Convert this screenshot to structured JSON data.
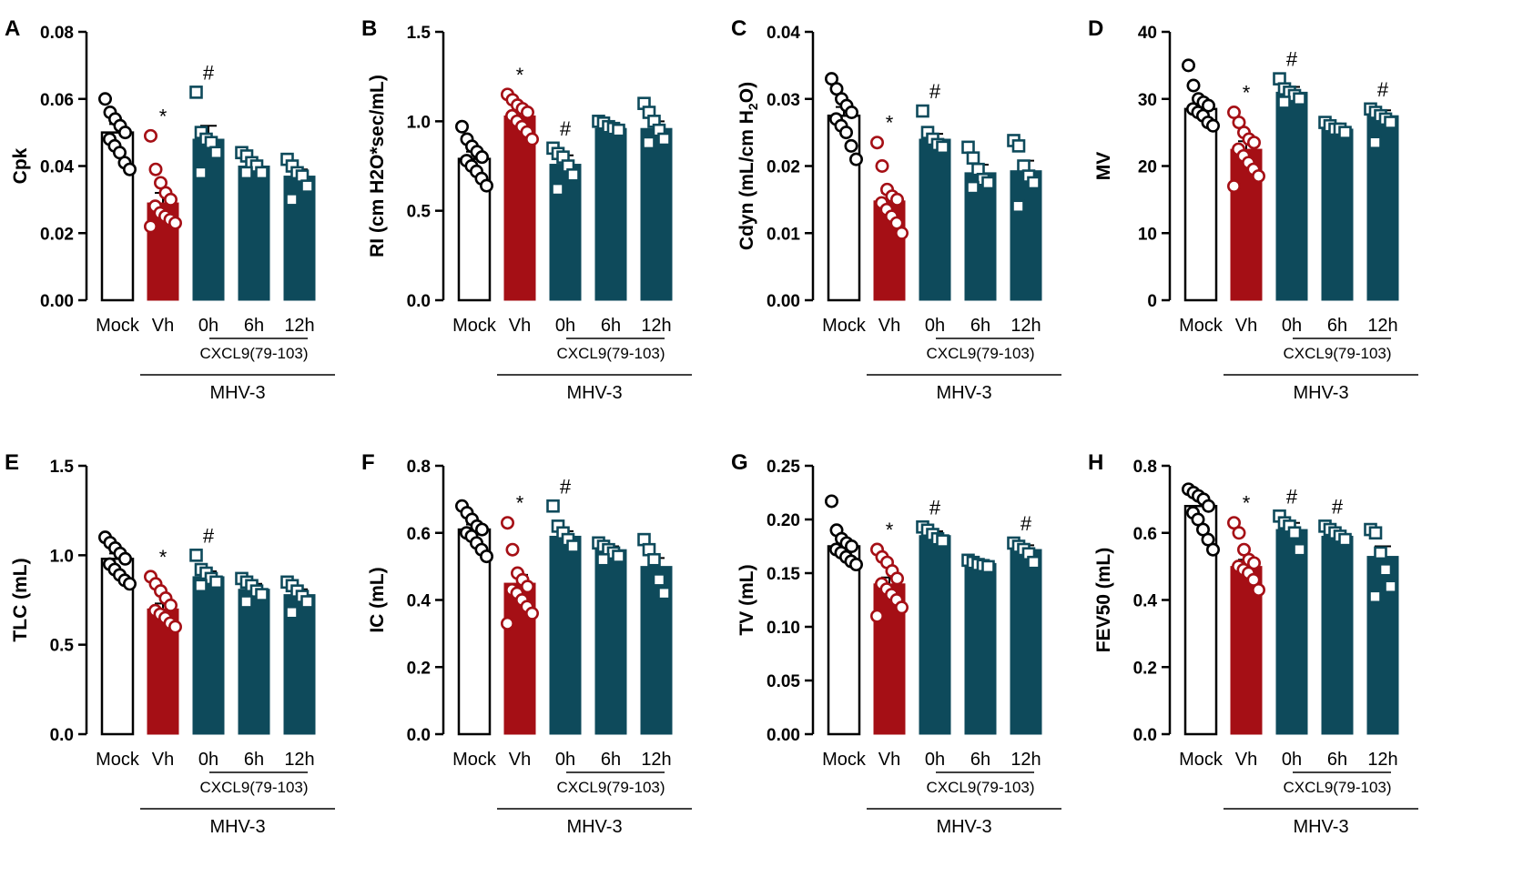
{
  "colors": {
    "mock": "#ffffff",
    "vehicle": "#a50f15",
    "treated": "#0e4a5b",
    "outline": "#000000"
  },
  "chart_data": [
    {
      "panel": "A",
      "type": "bar",
      "ylabel": "Cpk",
      "ylim": [
        0,
        0.08
      ],
      "yticks": [
        "0.00",
        "0.02",
        "0.04",
        "0.06",
        "0.08"
      ],
      "categories": [
        "Mock",
        "Vh",
        "0h",
        "6h",
        "12h"
      ],
      "values": [
        0.05,
        0.029,
        0.048,
        0.04,
        0.037
      ],
      "errors": [
        0.0025,
        0.003,
        0.004,
        0.0015,
        0.002
      ],
      "points": [
        [
          0.06,
          0.056,
          0.054,
          0.052,
          0.05,
          0.048,
          0.046,
          0.044,
          0.041,
          0.039
        ],
        [
          0.049,
          0.039,
          0.035,
          0.032,
          0.03,
          0.028,
          0.026,
          0.025,
          0.024,
          0.023,
          0.022
        ],
        [
          0.062,
          0.05,
          0.048,
          0.047,
          0.044,
          0.038
        ],
        [
          0.044,
          0.043,
          0.041,
          0.04,
          0.038,
          0.038
        ],
        [
          0.042,
          0.04,
          0.038,
          0.037,
          0.034,
          0.03
        ]
      ],
      "significance": [
        "",
        "*",
        "#",
        "",
        ""
      ],
      "group_label": "CXCL9(79-103)",
      "super_label": "MHV-3"
    },
    {
      "panel": "B",
      "type": "bar",
      "ylabel": "RI (cm H2O*sec/mL)",
      "ylim": [
        0,
        1.5
      ],
      "yticks": [
        "0.0",
        "0.5",
        "1.0",
        "1.5"
      ],
      "categories": [
        "Mock",
        "Vh",
        "0h",
        "6h",
        "12h"
      ],
      "values": [
        0.79,
        1.03,
        0.76,
        0.96,
        0.96
      ],
      "errors": [
        0.04,
        0.03,
        0.05,
        0.02,
        0.04
      ],
      "points": [
        [
          0.97,
          0.9,
          0.86,
          0.83,
          0.8,
          0.78,
          0.75,
          0.72,
          0.68,
          0.64
        ],
        [
          1.15,
          1.12,
          1.09,
          1.07,
          1.05,
          1.03,
          1.0,
          0.97,
          0.94,
          0.9
        ],
        [
          0.85,
          0.82,
          0.8,
          0.75,
          0.7,
          0.62
        ],
        [
          1.0,
          0.99,
          0.97,
          0.96,
          0.95
        ],
        [
          1.1,
          1.05,
          1.0,
          0.95,
          0.9,
          0.88
        ]
      ],
      "significance": [
        "",
        "*",
        "#",
        "",
        ""
      ],
      "group_label": "CXCL9(79-103)",
      "super_label": "MHV-3"
    },
    {
      "panel": "C",
      "type": "bar",
      "ylabel": "Cdyn (mL/cm H2O)",
      "ylim": [
        0,
        0.04
      ],
      "yticks": [
        "0.00",
        "0.01",
        "0.02",
        "0.03",
        "0.04"
      ],
      "categories": [
        "Mock",
        "Vh",
        "0h",
        "6h",
        "12h"
      ],
      "values": [
        0.0275,
        0.0148,
        0.024,
        0.019,
        0.0193
      ],
      "errors": [
        0.0013,
        0.0012,
        0.0008,
        0.0012,
        0.0015
      ],
      "points": [
        [
          0.033,
          0.0315,
          0.03,
          0.029,
          0.028,
          0.027,
          0.026,
          0.025,
          0.023,
          0.021
        ],
        [
          0.0235,
          0.02,
          0.0165,
          0.0155,
          0.015,
          0.0145,
          0.0135,
          0.0125,
          0.0115,
          0.01
        ],
        [
          0.0282,
          0.025,
          0.024,
          0.0232,
          0.0228
        ],
        [
          0.0228,
          0.0212,
          0.0195,
          0.018,
          0.0175,
          0.0168
        ],
        [
          0.0238,
          0.023,
          0.02,
          0.0185,
          0.0175,
          0.014
        ]
      ],
      "significance": [
        "",
        "*",
        "#",
        "",
        ""
      ],
      "group_label": "CXCL9(79-103)",
      "super_label": "MHV-3"
    },
    {
      "panel": "D",
      "type": "bar",
      "ylabel": "MV",
      "ylim": [
        0,
        40
      ],
      "yticks": [
        "0",
        "10",
        "20",
        "30",
        "40"
      ],
      "categories": [
        "Mock",
        "Vh",
        "0h",
        "6h",
        "12h"
      ],
      "values": [
        28.5,
        22.5,
        31.0,
        25.5,
        27.5
      ],
      "errors": [
        0.9,
        1.2,
        0.8,
        0.5,
        0.8
      ],
      "points": [
        [
          35,
          32,
          30,
          29.5,
          29,
          28.5,
          28,
          27.5,
          26.5,
          26
        ],
        [
          28,
          26.5,
          25,
          24,
          23.5,
          22.5,
          21.5,
          20.5,
          19.5,
          18.5,
          17
        ],
        [
          33,
          31.5,
          31,
          30.5,
          30,
          29.5
        ],
        [
          26.5,
          26,
          25.5,
          25.5,
          25
        ],
        [
          28.5,
          28,
          27.5,
          27,
          26.5,
          23.5
        ]
      ],
      "significance": [
        "",
        "*",
        "#",
        "",
        "#"
      ],
      "group_label": "CXCL9(79-103)",
      "super_label": "MHV-3"
    },
    {
      "panel": "E",
      "type": "bar",
      "ylabel": "TLC (mL)",
      "ylim": [
        0,
        1.5
      ],
      "yticks": [
        "0.0",
        "0.5",
        "1.0",
        "1.5"
      ],
      "categories": [
        "Mock",
        "Vh",
        "0h",
        "6h",
        "12h"
      ],
      "values": [
        0.98,
        0.7,
        0.88,
        0.81,
        0.78
      ],
      "errors": [
        0.03,
        0.03,
        0.03,
        0.03,
        0.03
      ],
      "points": [
        [
          1.1,
          1.07,
          1.04,
          1.01,
          0.98,
          0.95,
          0.92,
          0.89,
          0.86,
          0.84
        ],
        [
          0.88,
          0.84,
          0.8,
          0.76,
          0.72,
          0.69,
          0.67,
          0.65,
          0.62,
          0.6
        ],
        [
          1.0,
          0.92,
          0.9,
          0.87,
          0.85,
          0.83
        ],
        [
          0.87,
          0.85,
          0.83,
          0.8,
          0.78,
          0.74
        ],
        [
          0.85,
          0.83,
          0.8,
          0.77,
          0.74,
          0.68
        ]
      ],
      "significance": [
        "",
        "*",
        "#",
        "",
        ""
      ],
      "group_label": "CXCL9(79-103)",
      "super_label": "MHV-3"
    },
    {
      "panel": "F",
      "type": "bar",
      "ylabel": "IC (mL)",
      "ylim": [
        0,
        0.8
      ],
      "yticks": [
        "0.0",
        "0.2",
        "0.4",
        "0.6",
        "0.8"
      ],
      "categories": [
        "Mock",
        "Vh",
        "0h",
        "6h",
        "12h"
      ],
      "values": [
        0.61,
        0.45,
        0.59,
        0.55,
        0.5
      ],
      "errors": [
        0.015,
        0.025,
        0.015,
        0.01,
        0.025
      ],
      "points": [
        [
          0.68,
          0.66,
          0.64,
          0.62,
          0.61,
          0.6,
          0.59,
          0.57,
          0.55,
          0.53
        ],
        [
          0.63,
          0.55,
          0.48,
          0.46,
          0.44,
          0.43,
          0.42,
          0.4,
          0.38,
          0.36,
          0.33
        ],
        [
          0.68,
          0.62,
          0.6,
          0.58,
          0.56
        ],
        [
          0.57,
          0.56,
          0.55,
          0.54,
          0.53,
          0.52
        ],
        [
          0.58,
          0.55,
          0.52,
          0.46,
          0.42
        ]
      ],
      "significance": [
        "",
        "*",
        "#",
        "",
        ""
      ],
      "group_label": "CXCL9(79-103)",
      "super_label": "MHV-3"
    },
    {
      "panel": "G",
      "type": "bar",
      "ylabel": "TV (mL)",
      "ylim": [
        0,
        0.25
      ],
      "yticks": [
        "0.00",
        "0.05",
        "0.10",
        "0.15",
        "0.20",
        "0.25"
      ],
      "categories": [
        "Mock",
        "Vh",
        "0h",
        "6h",
        "12h"
      ],
      "values": [
        0.175,
        0.14,
        0.185,
        0.159,
        0.172
      ],
      "errors": [
        0.005,
        0.006,
        0.004,
        0.002,
        0.004
      ],
      "points": [
        [
          0.217,
          0.19,
          0.182,
          0.178,
          0.175,
          0.172,
          0.169,
          0.165,
          0.161,
          0.158
        ],
        [
          0.172,
          0.165,
          0.16,
          0.152,
          0.145,
          0.14,
          0.135,
          0.13,
          0.125,
          0.118,
          0.11
        ],
        [
          0.193,
          0.19,
          0.186,
          0.182,
          0.18
        ],
        [
          0.162,
          0.16,
          0.158,
          0.157,
          0.156
        ],
        [
          0.178,
          0.175,
          0.172,
          0.168,
          0.16
        ]
      ],
      "significance": [
        "",
        "*",
        "#",
        "",
        "#"
      ],
      "group_label": "CXCL9(79-103)",
      "super_label": "MHV-3"
    },
    {
      "panel": "H",
      "type": "bar",
      "ylabel": "FEV50 (mL)",
      "ylim": [
        0,
        0.8
      ],
      "yticks": [
        "0.0",
        "0.2",
        "0.4",
        "0.6",
        "0.8"
      ],
      "categories": [
        "Mock",
        "Vh",
        "0h",
        "6h",
        "12h"
      ],
      "values": [
        0.68,
        0.5,
        0.61,
        0.59,
        0.53
      ],
      "errors": [
        0.02,
        0.02,
        0.02,
        0.01,
        0.03
      ],
      "points": [
        [
          0.73,
          0.72,
          0.71,
          0.7,
          0.68,
          0.66,
          0.64,
          0.61,
          0.58,
          0.55
        ],
        [
          0.63,
          0.6,
          0.55,
          0.52,
          0.51,
          0.5,
          0.49,
          0.48,
          0.46,
          0.43
        ],
        [
          0.65,
          0.63,
          0.62,
          0.6,
          0.55
        ],
        [
          0.62,
          0.61,
          0.6,
          0.59,
          0.58
        ],
        [
          0.61,
          0.6,
          0.54,
          0.49,
          0.44,
          0.41
        ]
      ],
      "significance": [
        "",
        "*",
        "#",
        "#",
        ""
      ],
      "group_label": "CXCL9(79-103)",
      "super_label": "MHV-3"
    }
  ]
}
